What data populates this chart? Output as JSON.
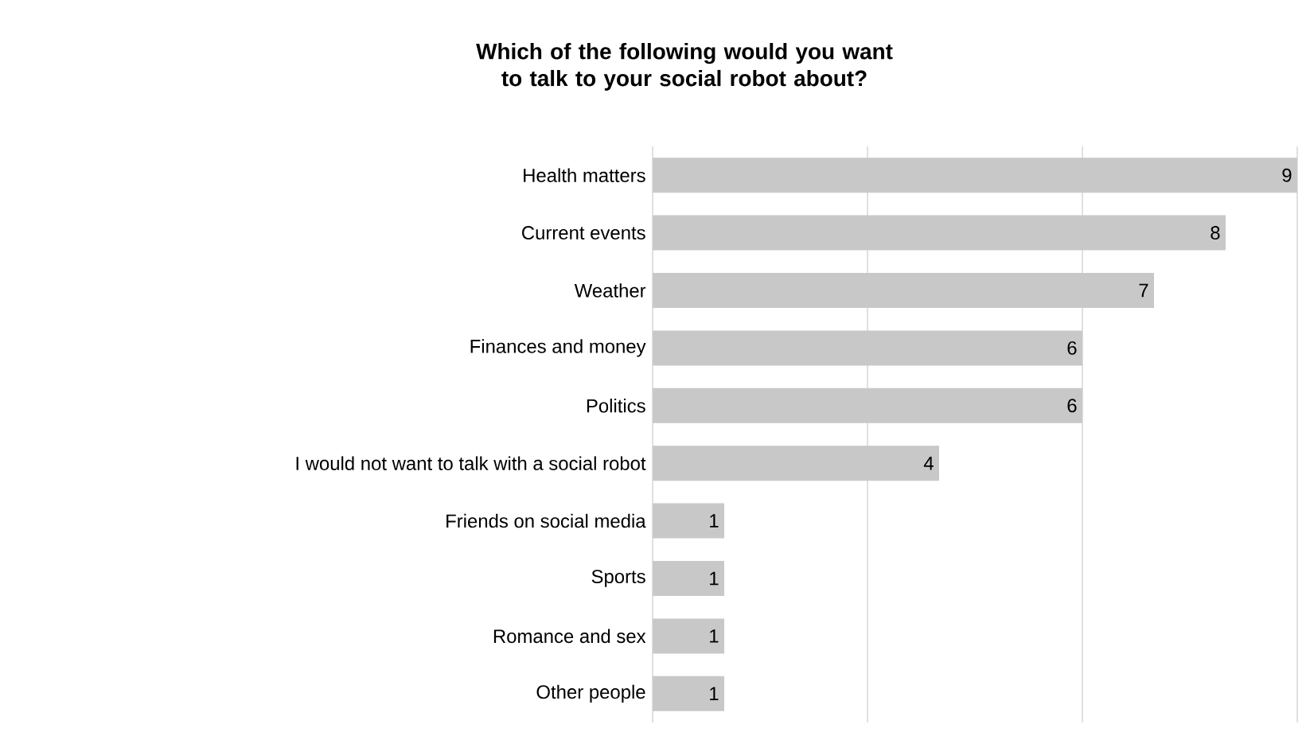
{
  "chart_data": {
    "type": "bar",
    "orientation": "horizontal",
    "title": "Which of the following would you want to talk to your social robot about?",
    "categories": [
      "Health matters",
      "Current events",
      "Weather",
      "Finances and money",
      "Politics",
      "I would not want to talk with a social robot",
      "Friends on social media",
      "Sports",
      "Romance and sex",
      "Other people"
    ],
    "values": [
      9,
      8,
      7,
      6,
      6,
      4,
      1,
      1,
      1,
      1
    ],
    "color": "#c8c8c8",
    "data_labels": true,
    "grid": "x",
    "tick_labels": "y",
    "xlim": [
      0,
      9
    ],
    "xticks": [
      {
        "value": 0,
        "label": null
      },
      {
        "value": 3,
        "label": null
      },
      {
        "value": 6,
        "label": null
      },
      {
        "value": 9,
        "label": null
      }
    ]
  }
}
